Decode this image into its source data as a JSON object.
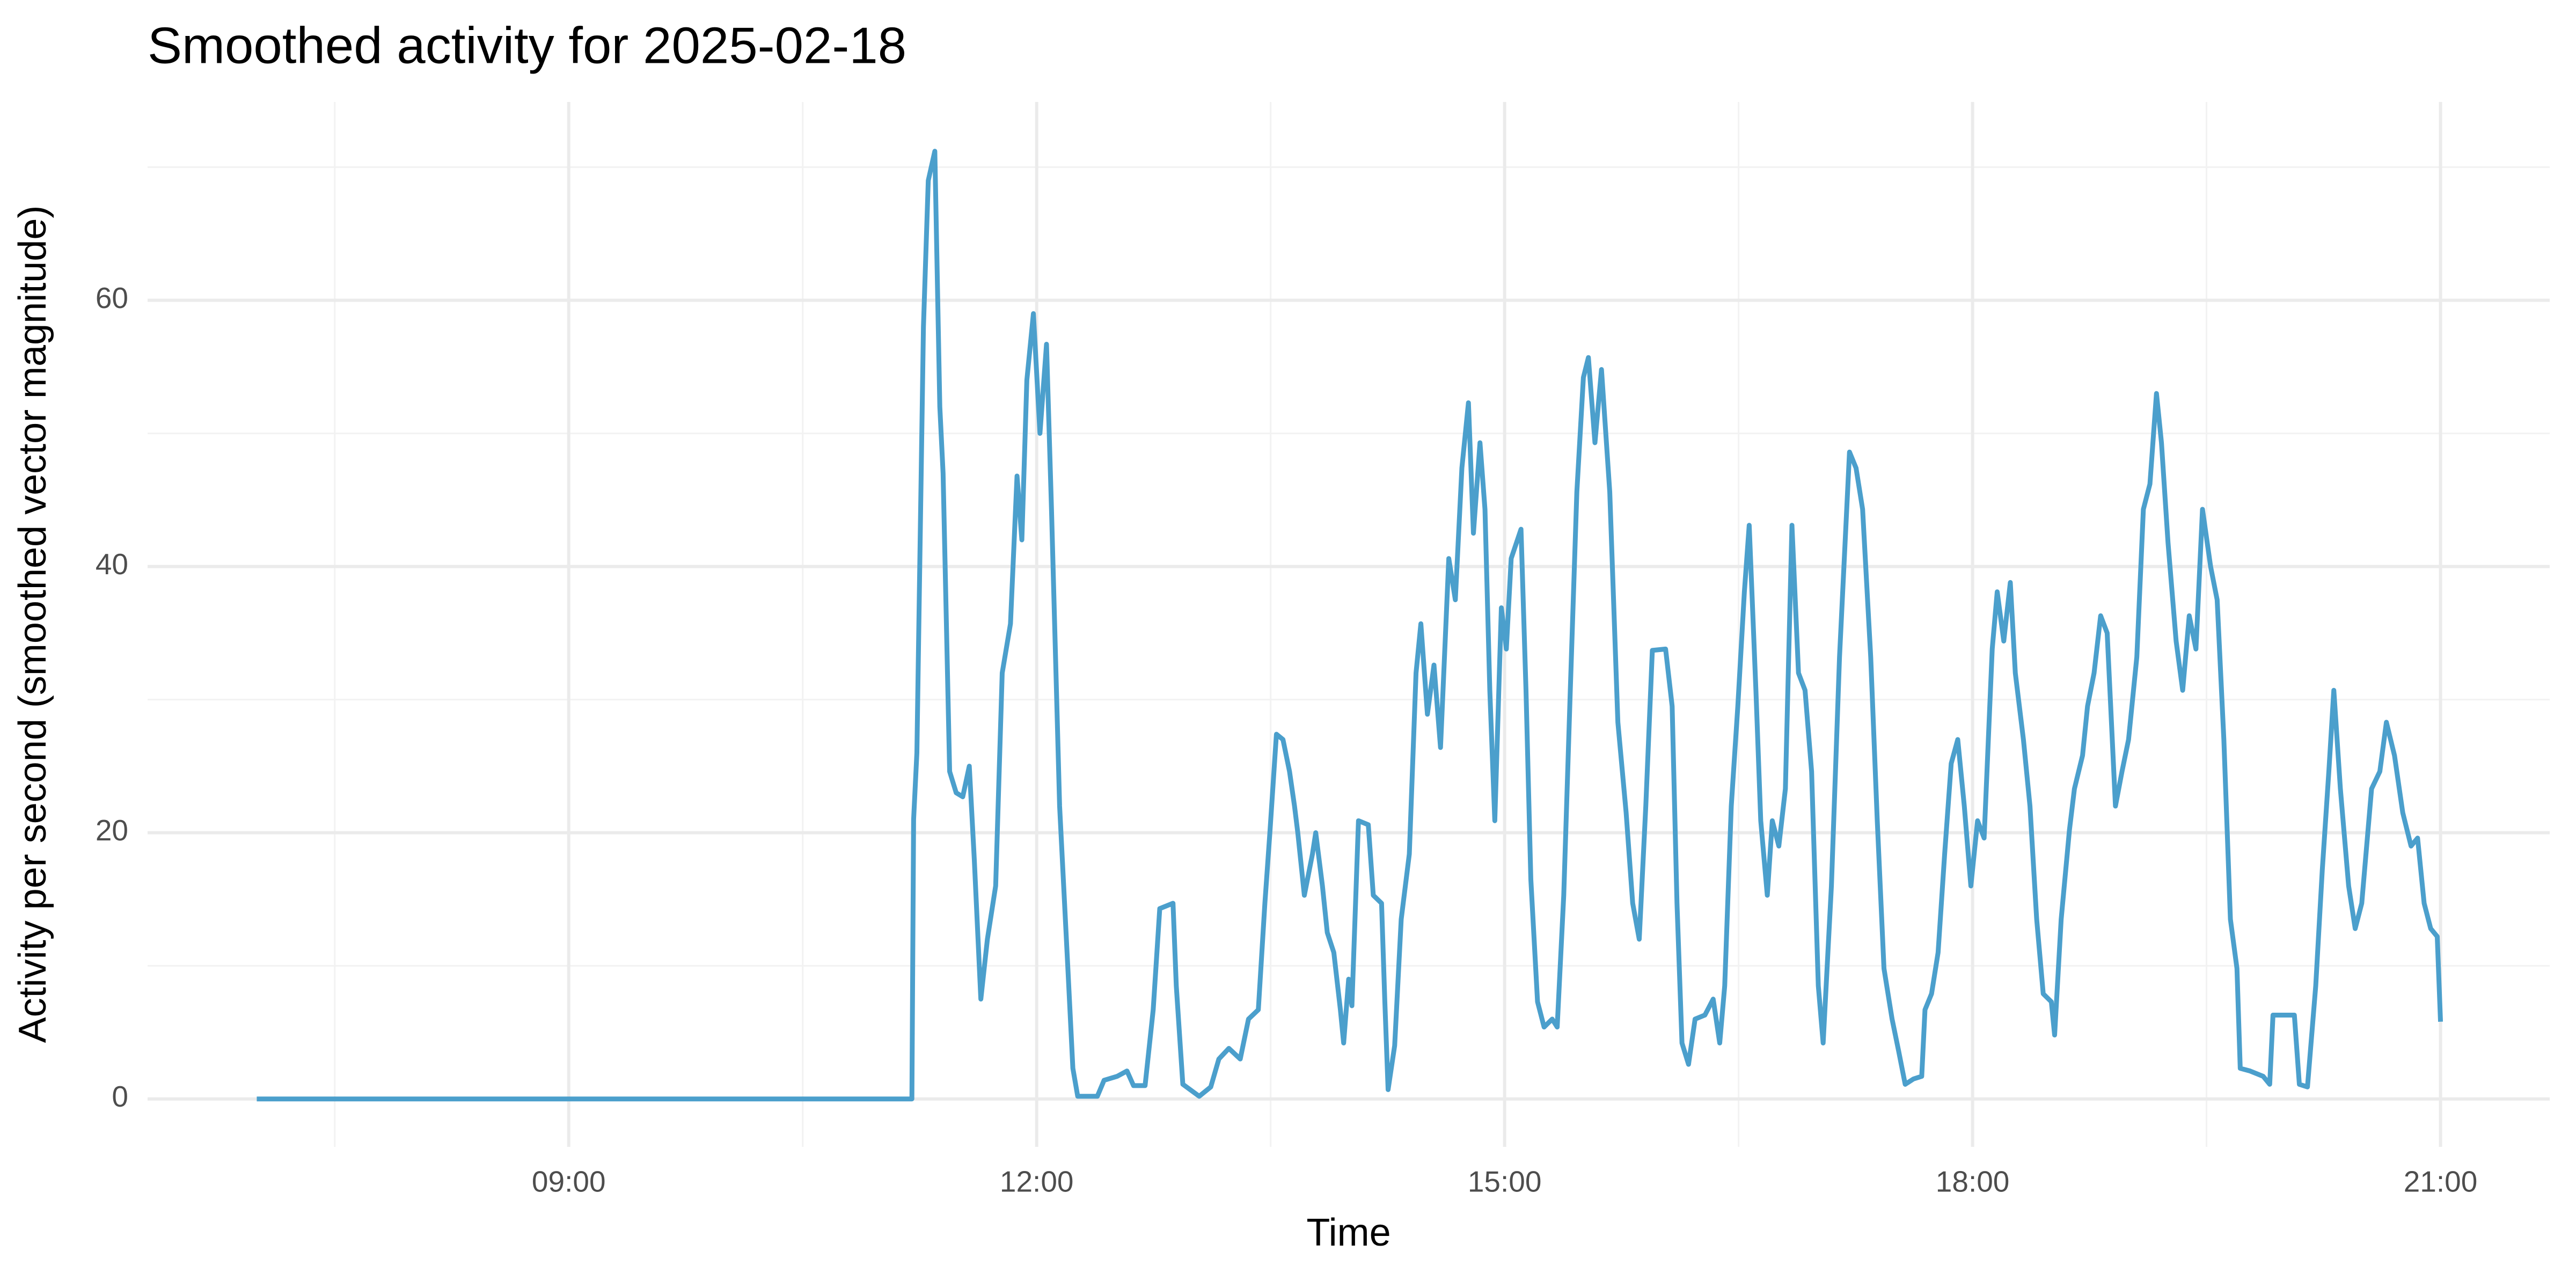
{
  "chart_data": {
    "type": "line",
    "title": "Smoothed activity for 2025-02-18",
    "x_label": "Time",
    "y_label": "Activity per second (smoothed vector magnitude)",
    "color": "#4b9fcc",
    "grid": true,
    "xlim": [
      6.3,
      21.7
    ],
    "ylim": [
      -3.6,
      74.9
    ],
    "xticks": [
      {
        "value": 9,
        "label": "09:00"
      },
      {
        "value": 12,
        "label": "12:00"
      },
      {
        "value": 15,
        "label": "15:00"
      },
      {
        "value": 18,
        "label": "18:00"
      },
      {
        "value": 21,
        "label": "21:00"
      }
    ],
    "yticks": [
      0,
      20,
      40,
      60
    ],
    "x_minor_grid": [
      7.5,
      10.5,
      13.5,
      16.5,
      19.5
    ],
    "y_minor_grid": [
      10,
      30,
      50,
      70
    ],
    "x": [
      7.0,
      11.2,
      11.211,
      11.232,
      11.274,
      11.305,
      11.347,
      11.379,
      11.4,
      11.442,
      11.484,
      11.526,
      11.568,
      11.6,
      11.642,
      11.684,
      11.737,
      11.779,
      11.832,
      11.874,
      11.905,
      11.937,
      11.979,
      12.021,
      12.063,
      12.095,
      12.147,
      12.2,
      12.232,
      12.263,
      12.389,
      12.432,
      12.516,
      12.579,
      12.621,
      12.695,
      12.747,
      12.789,
      12.874,
      12.895,
      12.937,
      13.042,
      13.116,
      13.168,
      13.232,
      13.305,
      13.358,
      13.421,
      13.463,
      13.495,
      13.537,
      13.579,
      13.621,
      13.653,
      13.674,
      13.716,
      13.768,
      13.789,
      13.832,
      13.863,
      13.905,
      13.947,
      13.968,
      14.0,
      14.021,
      14.063,
      14.126,
      14.158,
      14.211,
      14.232,
      14.253,
      14.295,
      14.337,
      14.389,
      14.432,
      14.463,
      14.505,
      14.547,
      14.589,
      14.642,
      14.684,
      14.726,
      14.768,
      14.8,
      14.842,
      14.874,
      14.905,
      14.937,
      14.979,
      15.011,
      15.042,
      15.105,
      15.137,
      15.168,
      15.211,
      15.253,
      15.305,
      15.337,
      15.379,
      15.421,
      15.463,
      15.505,
      15.537,
      15.579,
      15.621,
      15.674,
      15.726,
      15.779,
      15.821,
      15.863,
      15.905,
      15.947,
      16.032,
      16.074,
      16.105,
      16.137,
      16.179,
      16.221,
      16.284,
      16.337,
      16.379,
      16.411,
      16.453,
      16.495,
      16.537,
      16.568,
      16.611,
      16.642,
      16.684,
      16.716,
      16.758,
      16.8,
      16.842,
      16.884,
      16.926,
      16.968,
      17.011,
      17.042,
      17.095,
      17.147,
      17.211,
      17.253,
      17.295,
      17.347,
      17.389,
      17.432,
      17.484,
      17.526,
      17.568,
      17.621,
      17.674,
      17.695,
      17.737,
      17.779,
      17.821,
      17.863,
      17.905,
      17.947,
      17.989,
      18.032,
      18.074,
      18.126,
      18.158,
      18.2,
      18.242,
      18.274,
      18.326,
      18.368,
      18.411,
      18.453,
      18.505,
      18.526,
      18.568,
      18.621,
      18.653,
      18.705,
      18.737,
      18.779,
      18.821,
      18.863,
      18.916,
      18.958,
      19.0,
      19.053,
      19.095,
      19.137,
      19.179,
      19.211,
      19.253,
      19.305,
      19.347,
      19.389,
      19.432,
      19.474,
      19.526,
      19.568,
      19.611,
      19.653,
      19.695,
      19.716,
      19.779,
      19.863,
      19.905,
      19.926,
      20.011,
      20.063,
      20.095,
      20.147,
      20.2,
      20.242,
      20.284,
      20.316,
      20.358,
      20.411,
      20.453,
      20.495,
      20.558,
      20.611,
      20.653,
      20.705,
      20.758,
      20.811,
      20.853,
      20.895,
      20.937,
      20.979,
      21.0
    ],
    "values": [
      0,
      0,
      21,
      26,
      58,
      69,
      71.2,
      52,
      47,
      24.6,
      23,
      22.7,
      25,
      18,
      7.5,
      12,
      16,
      32,
      35.7,
      46.8,
      42,
      54,
      59,
      50,
      56.7,
      44.3,
      22,
      9.8,
      2.3,
      0.2,
      0.2,
      1.4,
      1.7,
      2.1,
      1,
      1,
      6.7,
      14.3,
      14.7,
      8.5,
      1.1,
      0.2,
      0.9,
      3,
      3.8,
      3,
      6,
      6.7,
      14.7,
      20,
      27.4,
      27,
      24.6,
      22,
      20,
      15.3,
      18.4,
      20,
      16,
      12.5,
      11,
      6.7,
      4.2,
      9,
      7,
      20.9,
      20.6,
      15.3,
      14.7,
      7.3,
      0.7,
      4,
      13.5,
      18.4,
      32,
      35.7,
      28.9,
      32.6,
      26.4,
      40.6,
      37.5,
      47.4,
      52.3,
      42.5,
      49.3,
      44.3,
      30.7,
      20.9,
      36.9,
      33.8,
      40.6,
      42.8,
      30.7,
      16.5,
      7.3,
      5.4,
      6,
      5.4,
      15.3,
      30.7,
      45.6,
      54.2,
      55.7,
      49.3,
      54.8,
      45.6,
      28.3,
      21.5,
      14.7,
      12,
      22,
      33.7,
      33.8,
      29.5,
      14.7,
      4.2,
      2.6,
      6,
      6.3,
      7.5,
      4.2,
      8.5,
      22,
      29.5,
      38.1,
      43.1,
      30.7,
      20.9,
      15.3,
      20.9,
      19,
      23.3,
      43.1,
      32,
      30.7,
      24.6,
      8.5,
      4.2,
      16,
      33.2,
      48.6,
      47.4,
      44.3,
      33.2,
      20.9,
      9.8,
      6,
      3.6,
      1.1,
      1.5,
      1.7,
      6.7,
      7.9,
      11,
      18.4,
      25.2,
      27,
      22,
      16,
      20.9,
      19.6,
      33.8,
      38.1,
      34.4,
      38.8,
      32,
      27,
      22,
      13.5,
      7.9,
      7.3,
      4.8,
      13.5,
      20.2,
      23.3,
      25.8,
      29.5,
      32,
      36.3,
      35,
      22,
      24.6,
      27,
      33.2,
      44.3,
      46.2,
      53,
      49.3,
      41.8,
      34.4,
      30.7,
      36.3,
      33.8,
      44.3,
      40,
      37.5,
      27,
      13.5,
      9.8,
      2.3,
      2.1,
      1.7,
      1.1,
      6.3,
      6.3,
      6.3,
      1.1,
      0.9,
      8.5,
      17.2,
      24.6,
      30.7,
      23.3,
      16,
      12.8,
      14.7,
      23.3,
      24.6,
      28.3,
      25.8,
      21.5,
      19,
      19.6,
      14.7,
      12.8,
      12.2,
      5.8
    ]
  }
}
